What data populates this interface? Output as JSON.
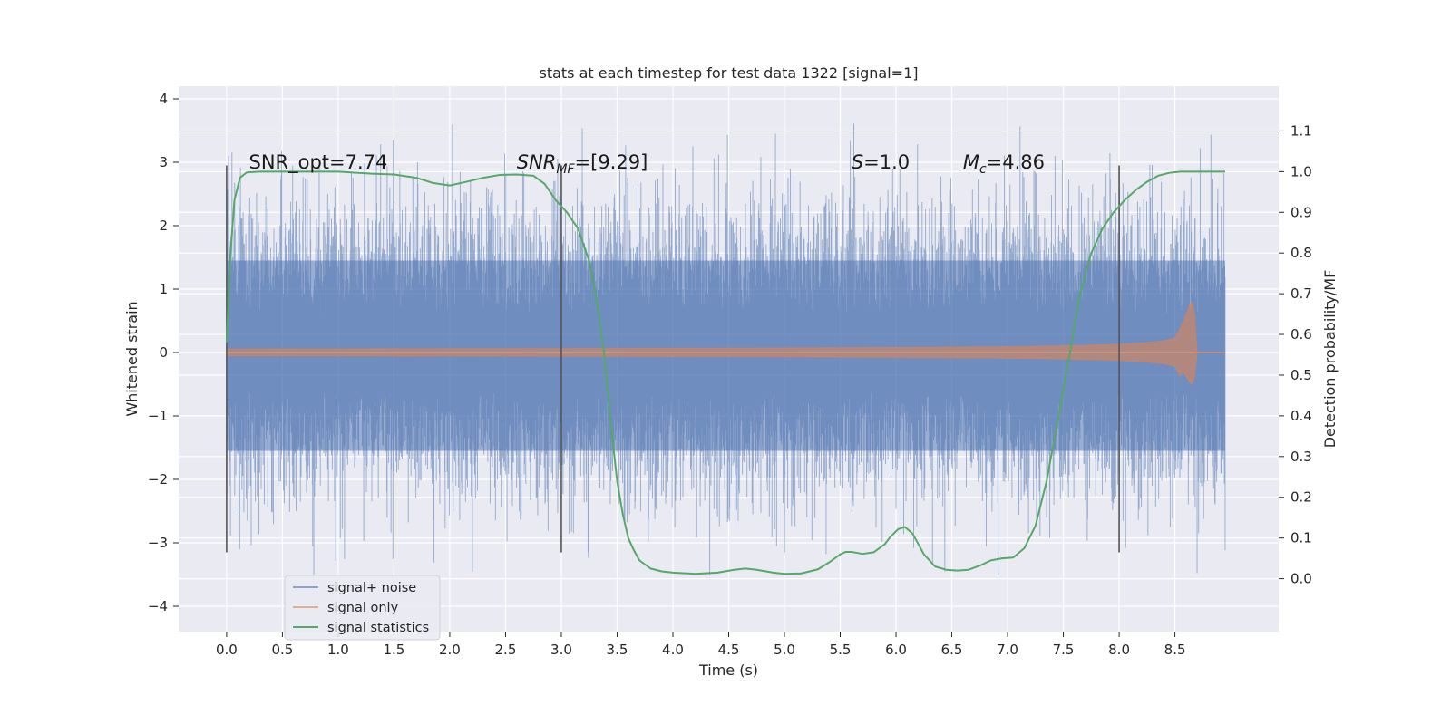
{
  "chart_data": {
    "type": "line",
    "title": "stats at each timestep for test data 1322 [signal=1]",
    "xlabel": "Time (s)",
    "ylabel": "Whitened strain",
    "ylabel_right": "Detection probability/MF",
    "xlim": [
      -0.43,
      9.43
    ],
    "ylim": [
      -4.4,
      4.2
    ],
    "ylim_right": [
      -0.13,
      1.21
    ],
    "xticks": [
      0.0,
      0.5,
      1.0,
      1.5,
      2.0,
      2.5,
      3.0,
      3.5,
      4.0,
      4.5,
      5.0,
      5.5,
      6.0,
      6.5,
      7.0,
      7.5,
      8.0,
      8.5
    ],
    "xtick_labels": [
      "0.0",
      "0.5",
      "1.0",
      "1.5",
      "2.0",
      "2.5",
      "3.0",
      "3.5",
      "4.0",
      "4.5",
      "5.0",
      "5.5",
      "6.0",
      "6.5",
      "7.0",
      "7.5",
      "8.0",
      "8.5"
    ],
    "yticks": [
      -4,
      -3,
      -2,
      -1,
      0,
      1,
      2,
      3,
      4
    ],
    "ytick_labels": [
      "−4",
      "−3",
      "−2",
      "−1",
      "0",
      "1",
      "2",
      "3",
      "4"
    ],
    "yticks_right": [
      0.0,
      0.1,
      0.2,
      0.3,
      0.4,
      0.5,
      0.6,
      0.7,
      0.8,
      0.9,
      1.0,
      1.1
    ],
    "ytick_labels_right": [
      "0.0",
      "0.1",
      "0.2",
      "0.3",
      "0.4",
      "0.5",
      "0.6",
      "0.7",
      "0.8",
      "0.9",
      "1.0",
      "1.1"
    ],
    "grid": true,
    "legend_placement": "lower-left",
    "vertical_lines": [
      0.0,
      3.0,
      8.0
    ],
    "vertical_line_range": [
      -3.15,
      2.95
    ],
    "annotations": [
      {
        "text": "SNR_opt=7.74",
        "x": 0.2,
        "y": 3.0
      },
      {
        "text": "SNR_MF=[9.29]",
        "x": 2.6,
        "y": 3.0
      },
      {
        "text": "S=1.0",
        "x": 5.6,
        "y": 3.0
      },
      {
        "text": "M_c=4.86",
        "x": 6.6,
        "y": 3.0
      }
    ],
    "series": [
      {
        "name": "signal+ noise",
        "color": "#4c72b0",
        "axis": "left",
        "description_type": "noise",
        "x_range": [
          0.0,
          8.95
        ]
      },
      {
        "name": "signal only",
        "color": "#dd8452",
        "axis": "left",
        "description_type": "chirp",
        "x_range": [
          0.0,
          8.95
        ],
        "peak_time": 8.67,
        "peak_amplitude": 0.8
      },
      {
        "name": "signal statistics",
        "color": "#55a868",
        "axis": "right",
        "x": [
          0.0,
          0.03,
          0.07,
          0.12,
          0.18,
          0.3,
          0.5,
          1.0,
          1.3,
          1.5,
          1.7,
          1.85,
          2.0,
          2.15,
          2.3,
          2.45,
          2.6,
          2.75,
          2.85,
          2.95,
          3.05,
          3.15,
          3.25,
          3.32,
          3.38,
          3.42,
          3.46,
          3.5,
          3.55,
          3.6,
          3.65,
          3.7,
          3.8,
          3.9,
          4.0,
          4.2,
          4.4,
          4.55,
          4.65,
          4.75,
          4.9,
          5.0,
          5.15,
          5.3,
          5.4,
          5.5,
          5.55,
          5.6,
          5.7,
          5.8,
          5.9,
          5.95,
          6.02,
          6.08,
          6.15,
          6.25,
          6.35,
          6.45,
          6.55,
          6.65,
          6.75,
          6.85,
          6.95,
          7.05,
          7.15,
          7.25,
          7.35,
          7.45,
          7.55,
          7.65,
          7.75,
          7.85,
          7.95,
          8.05,
          8.15,
          8.25,
          8.35,
          8.45,
          8.55,
          8.65,
          8.75,
          8.85,
          8.95
        ],
        "values": [
          0.58,
          0.78,
          0.93,
          0.985,
          0.998,
          1.0,
          1.0,
          1.0,
          0.995,
          0.993,
          0.985,
          0.972,
          0.966,
          0.975,
          0.985,
          0.992,
          0.993,
          0.99,
          0.97,
          0.93,
          0.9,
          0.86,
          0.78,
          0.68,
          0.56,
          0.45,
          0.34,
          0.24,
          0.16,
          0.1,
          0.07,
          0.045,
          0.025,
          0.018,
          0.015,
          0.012,
          0.015,
          0.022,
          0.025,
          0.022,
          0.015,
          0.012,
          0.013,
          0.023,
          0.04,
          0.06,
          0.066,
          0.066,
          0.061,
          0.065,
          0.085,
          0.103,
          0.122,
          0.127,
          0.11,
          0.06,
          0.03,
          0.022,
          0.02,
          0.022,
          0.032,
          0.045,
          0.05,
          0.052,
          0.075,
          0.13,
          0.24,
          0.39,
          0.54,
          0.7,
          0.8,
          0.86,
          0.9,
          0.93,
          0.955,
          0.975,
          0.99,
          0.997,
          1.0,
          1.0,
          1.0,
          1.0,
          1.0
        ]
      }
    ]
  }
}
